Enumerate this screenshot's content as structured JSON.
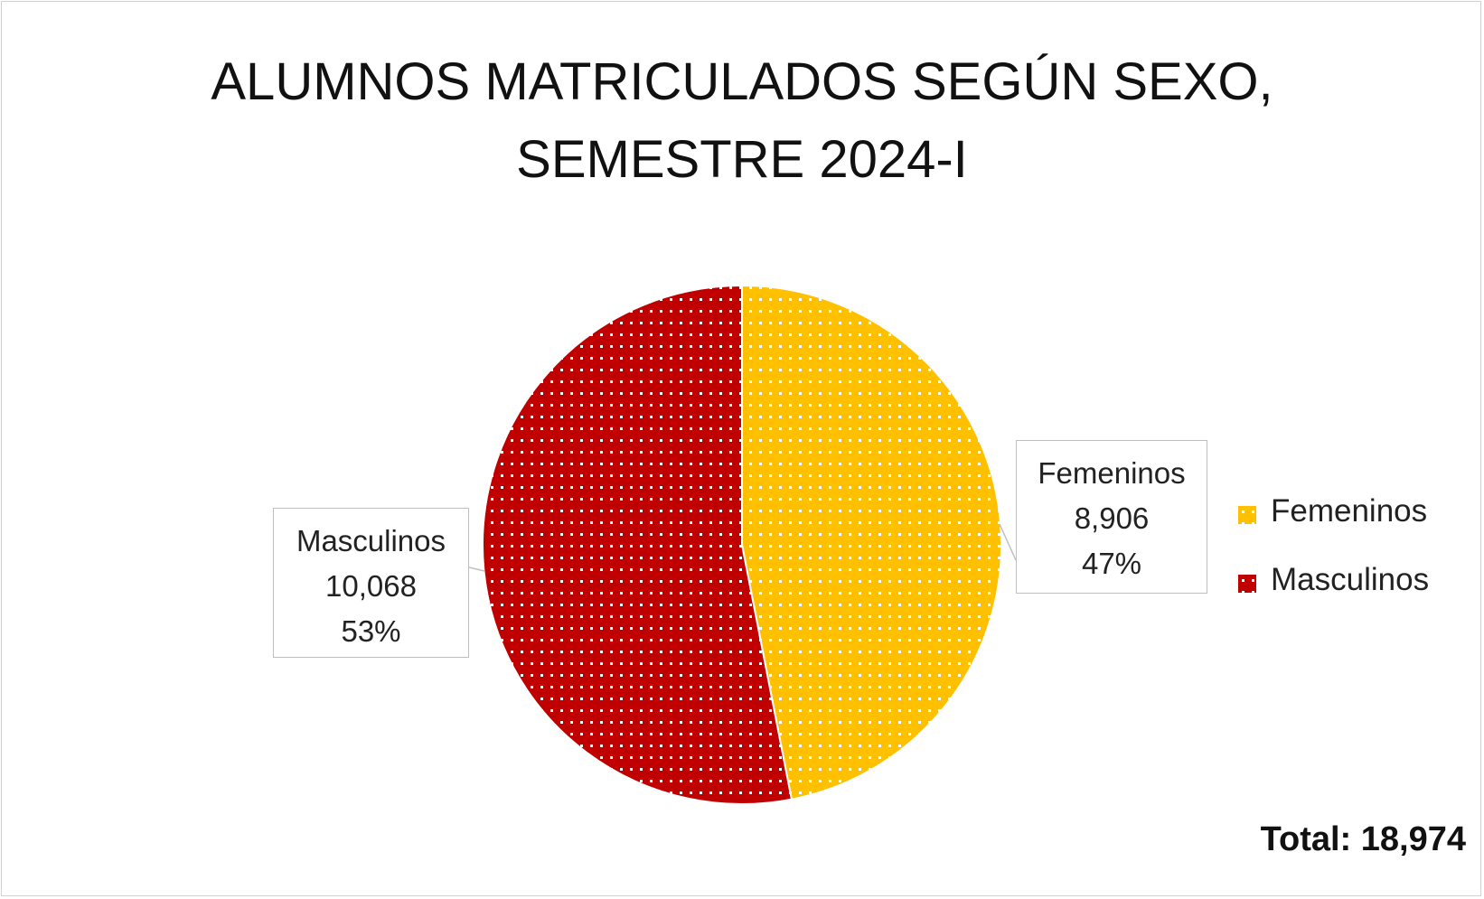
{
  "chart_data": {
    "type": "pie",
    "title_lines": [
      "ALUMNOS MATRICULADOS SEGÚN SEXO,",
      "SEMESTRE 2024-I"
    ],
    "slices": [
      {
        "name": "Femeninos",
        "value": 8906,
        "value_label": "8,906",
        "percent_label": "47%",
        "color": "#FFC000"
      },
      {
        "name": "Masculinos",
        "value": 10068,
        "value_label": "10,068",
        "percent_label": "53%",
        "color": "#C00000"
      }
    ],
    "legend": {
      "position": "right",
      "items": [
        "Femeninos",
        "Masculinos"
      ]
    },
    "fill_pattern": "white-dots",
    "total_label": "Total: 18,974"
  }
}
